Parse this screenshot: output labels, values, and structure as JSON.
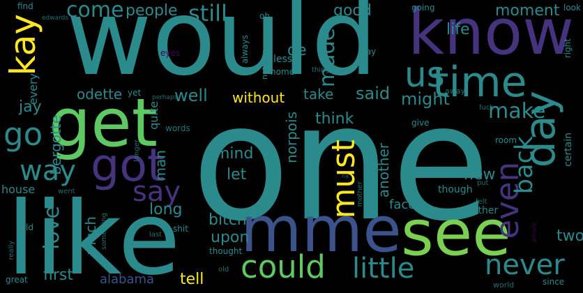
{
  "palette": {
    "background": "#000000",
    "teal": "#2a8a8c",
    "teal_dark": "#21918c",
    "blue": "#3b528b",
    "purple": "#46337e",
    "dark_purple": "#440154",
    "green": "#5ec962",
    "light_green": "#7ad151",
    "yellow": "#fde725",
    "cyan": "#22a884"
  },
  "words": [
    {
      "text": "one",
      "color": "teal"
    },
    {
      "text": "would",
      "color": "teal"
    },
    {
      "text": "like",
      "color": "teal"
    },
    {
      "text": "know",
      "color": "purple"
    },
    {
      "text": "get",
      "color": "green"
    },
    {
      "text": "mme",
      "color": "blue"
    },
    {
      "text": "see",
      "color": "light_green"
    },
    {
      "text": "time",
      "color": "teal"
    },
    {
      "text": "got",
      "color": "purple"
    },
    {
      "text": "us",
      "color": "teal"
    },
    {
      "text": "could",
      "color": "green"
    },
    {
      "text": "day",
      "color": "teal"
    },
    {
      "text": "little",
      "color": "teal"
    },
    {
      "text": "kay",
      "color": "yellow"
    },
    {
      "text": "say",
      "color": "purple"
    },
    {
      "text": "must",
      "color": "yellow"
    },
    {
      "text": "never",
      "color": "teal"
    },
    {
      "text": "even",
      "color": "purple"
    },
    {
      "text": "go",
      "color": "teal"
    },
    {
      "text": "way",
      "color": "teal"
    },
    {
      "text": "come",
      "color": "teal"
    },
    {
      "text": "still",
      "color": "teal"
    },
    {
      "text": "back",
      "color": "teal"
    },
    {
      "text": "made",
      "color": "teal"
    },
    {
      "text": "make",
      "color": "teal"
    },
    {
      "text": "love",
      "color": "teal"
    },
    {
      "text": "people",
      "color": "teal"
    },
    {
      "text": "good",
      "color": "teal"
    },
    {
      "text": "life",
      "color": "teal"
    },
    {
      "text": "moment",
      "color": "teal"
    },
    {
      "text": "de",
      "color": "teal"
    },
    {
      "text": "well",
      "color": "teal"
    },
    {
      "text": "without",
      "color": "yellow"
    },
    {
      "text": "take",
      "color": "teal"
    },
    {
      "text": "said",
      "color": "teal"
    },
    {
      "text": "might",
      "color": "teal"
    },
    {
      "text": "jay",
      "color": "teal"
    },
    {
      "text": "odette",
      "color": "teal"
    },
    {
      "text": "bergotte",
      "color": "teal"
    },
    {
      "text": "every",
      "color": "teal"
    },
    {
      "text": "think",
      "color": "teal"
    },
    {
      "text": "norpois",
      "color": "teal"
    },
    {
      "text": "mind",
      "color": "teal"
    },
    {
      "text": "let",
      "color": "teal"
    },
    {
      "text": "another",
      "color": "teal"
    },
    {
      "text": "new",
      "color": "teal"
    },
    {
      "text": "long",
      "color": "teal"
    },
    {
      "text": "much",
      "color": "teal"
    },
    {
      "text": "man",
      "color": "teal"
    },
    {
      "text": "bitch",
      "color": "teal"
    },
    {
      "text": "upon",
      "color": "teal"
    },
    {
      "text": "face",
      "color": "teal"
    },
    {
      "text": "two",
      "color": "teal"
    },
    {
      "text": "first",
      "color": "teal"
    },
    {
      "text": "alabama",
      "color": "blue"
    },
    {
      "text": "tell",
      "color": "yellow"
    },
    {
      "text": "house",
      "color": "teal"
    },
    {
      "text": "quite",
      "color": "teal"
    },
    {
      "text": "words",
      "color": "teal"
    },
    {
      "text": "dick",
      "color": "teal"
    },
    {
      "text": "father",
      "color": "teal"
    },
    {
      "text": "though",
      "color": "teal"
    },
    {
      "text": "certain",
      "color": "teal"
    },
    {
      "text": "room",
      "color": "teal"
    },
    {
      "text": "give",
      "color": "teal"
    },
    {
      "text": "fuck",
      "color": "teal"
    },
    {
      "text": "away",
      "color": "teal"
    },
    {
      "text": "look",
      "color": "teal"
    },
    {
      "text": "right",
      "color": "teal"
    },
    {
      "text": "may",
      "color": "teal"
    },
    {
      "text": "less",
      "color": "teal"
    },
    {
      "text": "home",
      "color": "teal"
    },
    {
      "text": "things",
      "color": "teal"
    },
    {
      "text": "nothing",
      "color": "teal"
    },
    {
      "text": "always",
      "color": "teal"
    },
    {
      "text": "seemed",
      "color": "teal"
    },
    {
      "text": "eyes",
      "color": "dark_purple"
    },
    {
      "text": "going",
      "color": "teal"
    },
    {
      "text": "find",
      "color": "teal"
    },
    {
      "text": "edwards",
      "color": "teal"
    },
    {
      "text": "oh",
      "color": "teal"
    },
    {
      "text": "yet",
      "color": "teal"
    },
    {
      "text": "perhaps",
      "color": "teal"
    },
    {
      "text": "longer",
      "color": "teal"
    },
    {
      "text": "told",
      "color": "teal"
    },
    {
      "text": "went",
      "color": "teal"
    },
    {
      "text": "shit",
      "color": "teal"
    },
    {
      "text": "last",
      "color": "teal"
    },
    {
      "text": "thought",
      "color": "teal"
    },
    {
      "text": "something",
      "color": "teal"
    },
    {
      "text": "really",
      "color": "teal"
    },
    {
      "text": "great",
      "color": "teal"
    },
    {
      "text": "old",
      "color": "teal"
    },
    {
      "text": "mother",
      "color": "teal"
    },
    {
      "text": "felt",
      "color": "teal"
    },
    {
      "text": "put",
      "color": "teal"
    },
    {
      "text": "whole",
      "color": "dark_purple"
    },
    {
      "text": "world",
      "color": "teal"
    },
    {
      "text": "since",
      "color": "teal"
    },
    {
      "text": "na",
      "color": "teal"
    }
  ]
}
